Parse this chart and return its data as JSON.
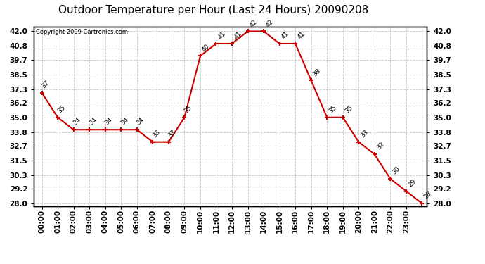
{
  "title": "Outdoor Temperature per Hour (Last 24 Hours) 20090208",
  "copyright": "Copyright 2009 Cartronics.com",
  "hours": [
    "00:00",
    "01:00",
    "02:00",
    "03:00",
    "04:00",
    "05:00",
    "06:00",
    "07:00",
    "08:00",
    "09:00",
    "10:00",
    "11:00",
    "12:00",
    "13:00",
    "14:00",
    "15:00",
    "16:00",
    "17:00",
    "18:00",
    "19:00",
    "20:00",
    "21:00",
    "22:00",
    "23:00"
  ],
  "temp_vals": [
    37,
    35,
    34,
    34,
    34,
    34,
    34,
    33,
    33,
    35,
    40,
    41,
    41,
    42,
    42,
    41,
    41,
    38,
    35,
    35,
    33,
    32,
    30,
    29,
    28
  ],
  "ylim_min": 27.8,
  "ylim_max": 42.4,
  "yticks": [
    28.0,
    29.2,
    30.3,
    31.5,
    32.7,
    33.8,
    35.0,
    36.2,
    37.3,
    38.5,
    39.7,
    40.8,
    42.0
  ],
  "line_color": "#cc0000",
  "bg_color": "#ffffff",
  "grid_color": "#bbbbbb",
  "title_fontsize": 11,
  "copyright_fontsize": 6,
  "label_fontsize": 6.5,
  "tick_fontsize": 7.5
}
